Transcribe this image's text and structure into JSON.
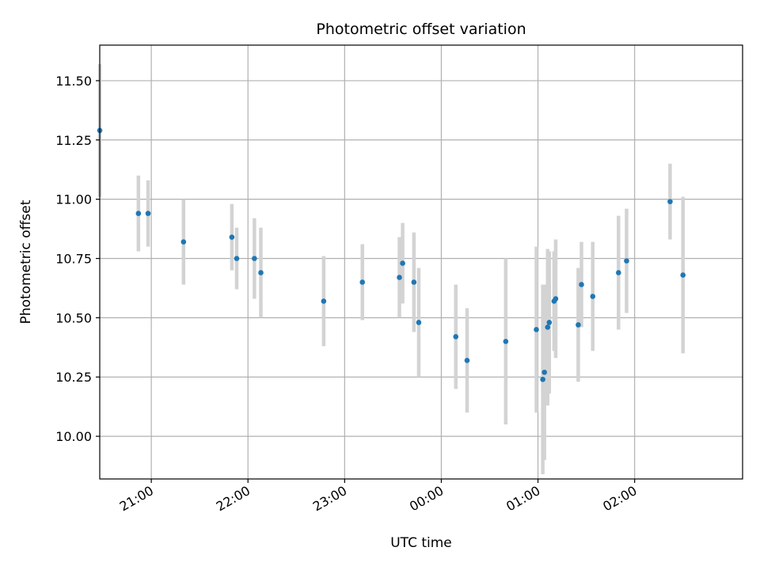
{
  "chart_data": {
    "type": "scatter",
    "title": "Photometric offset variation",
    "xlabel": "UTC time",
    "ylabel": "Photometric offset",
    "x_unit": "UTC time of day (hours past 20:00 on the first night; values > 4 are after midnight)",
    "xlim": [
      "20:28",
      "03:07"
    ],
    "ylim": [
      9.82,
      11.65
    ],
    "grid": true,
    "x_ticks": [
      "21:00",
      "22:00",
      "23:00",
      "00:00",
      "01:00",
      "02:00"
    ],
    "y_ticks": [
      "10.00",
      "10.25",
      "10.50",
      "10.75",
      "11.00",
      "11.25",
      "11.50"
    ],
    "colors": {
      "point": "#1f77b4",
      "error_bar": "#d3d3d3",
      "grid": "#b0b0b0"
    },
    "series": [
      {
        "points": [
          {
            "time": "20:28",
            "y": 11.29,
            "err": 0.28
          },
          {
            "time": "20:52",
            "y": 10.94,
            "err": 0.16
          },
          {
            "time": "20:58",
            "y": 10.94,
            "err": 0.14
          },
          {
            "time": "21:20",
            "y": 10.82,
            "err": 0.18
          },
          {
            "time": "21:50",
            "y": 10.84,
            "err": 0.14
          },
          {
            "time": "21:53",
            "y": 10.75,
            "err": 0.13
          },
          {
            "time": "22:04",
            "y": 10.75,
            "err": 0.17
          },
          {
            "time": "22:08",
            "y": 10.69,
            "err": 0.19
          },
          {
            "time": "22:47",
            "y": 10.57,
            "err": 0.19
          },
          {
            "time": "23:11",
            "y": 10.65,
            "err": 0.16
          },
          {
            "time": "23:34",
            "y": 10.67,
            "err": 0.17
          },
          {
            "time": "23:36",
            "y": 10.73,
            "err": 0.17
          },
          {
            "time": "23:43",
            "y": 10.65,
            "err": 0.21
          },
          {
            "time": "23:46",
            "y": 10.48,
            "err": 0.23
          },
          {
            "time": "00:09",
            "y": 10.42,
            "err": 0.22
          },
          {
            "time": "00:16",
            "y": 10.32,
            "err": 0.22
          },
          {
            "time": "00:40",
            "y": 10.4,
            "err": 0.35
          },
          {
            "time": "00:59",
            "y": 10.45,
            "err": 0.35
          },
          {
            "time": "01:03",
            "y": 10.24,
            "err": 0.4
          },
          {
            "time": "01:04",
            "y": 10.27,
            "err": 0.37
          },
          {
            "time": "01:06",
            "y": 10.46,
            "err": 0.33
          },
          {
            "time": "01:07",
            "y": 10.48,
            "err": 0.3
          },
          {
            "time": "01:10",
            "y": 10.57,
            "err": 0.21
          },
          {
            "time": "01:11",
            "y": 10.58,
            "err": 0.25
          },
          {
            "time": "01:25",
            "y": 10.47,
            "err": 0.24
          },
          {
            "time": "01:27",
            "y": 10.64,
            "err": 0.18
          },
          {
            "time": "01:34",
            "y": 10.59,
            "err": 0.23
          },
          {
            "time": "01:50",
            "y": 10.69,
            "err": 0.24
          },
          {
            "time": "01:55",
            "y": 10.74,
            "err": 0.22
          },
          {
            "time": "02:22",
            "y": 10.99,
            "err": 0.16
          },
          {
            "time": "02:30",
            "y": 10.68,
            "err": 0.33
          }
        ]
      }
    ]
  }
}
